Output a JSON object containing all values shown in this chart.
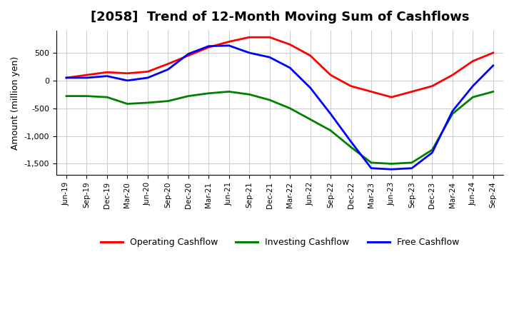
{
  "title": "[2058]  Trend of 12-Month Moving Sum of Cashflows",
  "ylabel": "Amount (million yen)",
  "ylim": [
    -1700,
    900
  ],
  "yticks": [
    500,
    0,
    -500,
    -1000,
    -1500
  ],
  "background_color": "#ffffff",
  "grid_color": "#cccccc",
  "legend_labels": [
    "Operating Cashflow",
    "Investing Cashflow",
    "Free Cashflow"
  ],
  "line_colors": [
    "#ff0000",
    "#008000",
    "#0000ff"
  ],
  "x_labels": [
    "Jun-19",
    "Sep-19",
    "Dec-19",
    "Mar-20",
    "Jun-20",
    "Sep-20",
    "Dec-20",
    "Mar-21",
    "Jun-21",
    "Sep-21",
    "Dec-21",
    "Mar-22",
    "Jun-22",
    "Sep-22",
    "Dec-22",
    "Mar-23",
    "Jun-23",
    "Sep-23",
    "Dec-23",
    "Mar-24",
    "Jun-24",
    "Sep-24"
  ],
  "operating": [
    50,
    100,
    150,
    130,
    160,
    300,
    450,
    600,
    700,
    780,
    780,
    650,
    450,
    100,
    -100,
    -200,
    -300,
    -200,
    -100,
    100,
    350,
    500
  ],
  "investing": [
    -280,
    -280,
    -300,
    -420,
    -400,
    -370,
    -280,
    -230,
    -200,
    -250,
    -350,
    -500,
    -700,
    -900,
    -1200,
    -1480,
    -1500,
    -1480,
    -1250,
    -600,
    -300,
    -200
  ],
  "free": [
    50,
    50,
    80,
    0,
    50,
    200,
    480,
    620,
    630,
    500,
    420,
    230,
    -130,
    -600,
    -1100,
    -1580,
    -1600,
    -1580,
    -1300,
    -550,
    -100,
    270
  ]
}
